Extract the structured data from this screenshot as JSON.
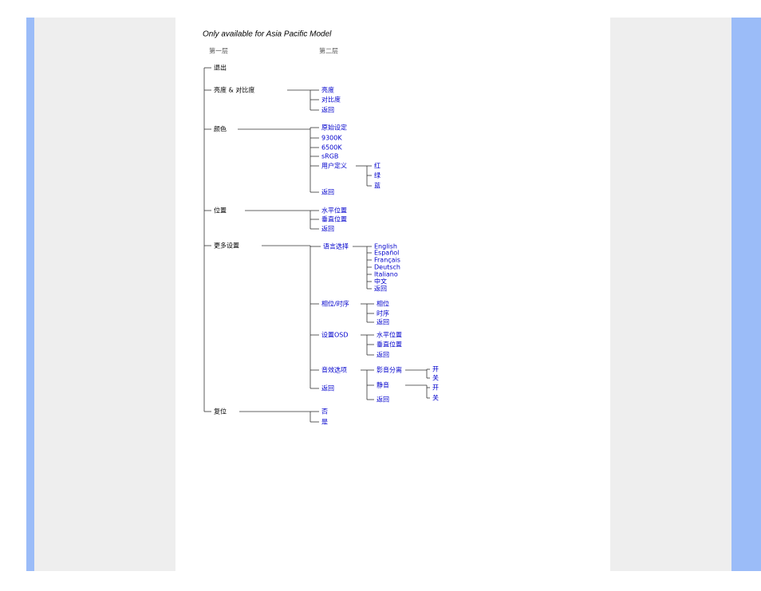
{
  "title": "Only available for Asia Pacific Model",
  "headers": [
    "第一层",
    "第二层"
  ],
  "menu": [
    {
      "label": "退出"
    },
    {
      "label": "亮度 & 对比度",
      "items": [
        {
          "label": "亮度"
        },
        {
          "label": "对比度"
        },
        {
          "label": "返回"
        }
      ]
    },
    {
      "label": "颜色",
      "items": [
        {
          "label": "原始设定"
        },
        {
          "label": "9300K"
        },
        {
          "label": "6500K"
        },
        {
          "label": "sRGB"
        },
        {
          "label": "用户定义",
          "items": [
            {
              "label": "红"
            },
            {
              "label": "绿"
            },
            {
              "label": "蓝"
            }
          ]
        },
        {
          "label": "返回"
        }
      ]
    },
    {
      "label": "位置",
      "items": [
        {
          "label": "水平位置"
        },
        {
          "label": "垂直位置"
        },
        {
          "label": "返回"
        }
      ]
    },
    {
      "label": "更多设置",
      "items": [
        {
          "label": "语言选择",
          "items": [
            {
              "label": "English"
            },
            {
              "label": "Español"
            },
            {
              "label": "Français"
            },
            {
              "label": "Deutsch"
            },
            {
              "label": "Italiano"
            },
            {
              "label": "中文"
            },
            {
              "label": "返回"
            }
          ]
        },
        {
          "label": "相位/时序",
          "items": [
            {
              "label": "相位"
            },
            {
              "label": "时序"
            },
            {
              "label": "返回"
            }
          ]
        },
        {
          "label": "设置OSD",
          "items": [
            {
              "label": "水平位置"
            },
            {
              "label": "垂直位置"
            },
            {
              "label": "返回"
            }
          ]
        },
        {
          "label": "音效选项",
          "items": [
            {
              "label": "影音分离",
              "items": [
                {
                  "label": "开"
                },
                {
                  "label": "关"
                }
              ]
            },
            {
              "label": "静音",
              "items": [
                {
                  "label": "开"
                },
                {
                  "label": "关"
                }
              ]
            },
            {
              "label": "返回"
            }
          ]
        },
        {
          "label": "返回"
        }
      ]
    },
    {
      "label": "复位",
      "items": [
        {
          "label": "否"
        },
        {
          "label": "是"
        }
      ]
    }
  ]
}
